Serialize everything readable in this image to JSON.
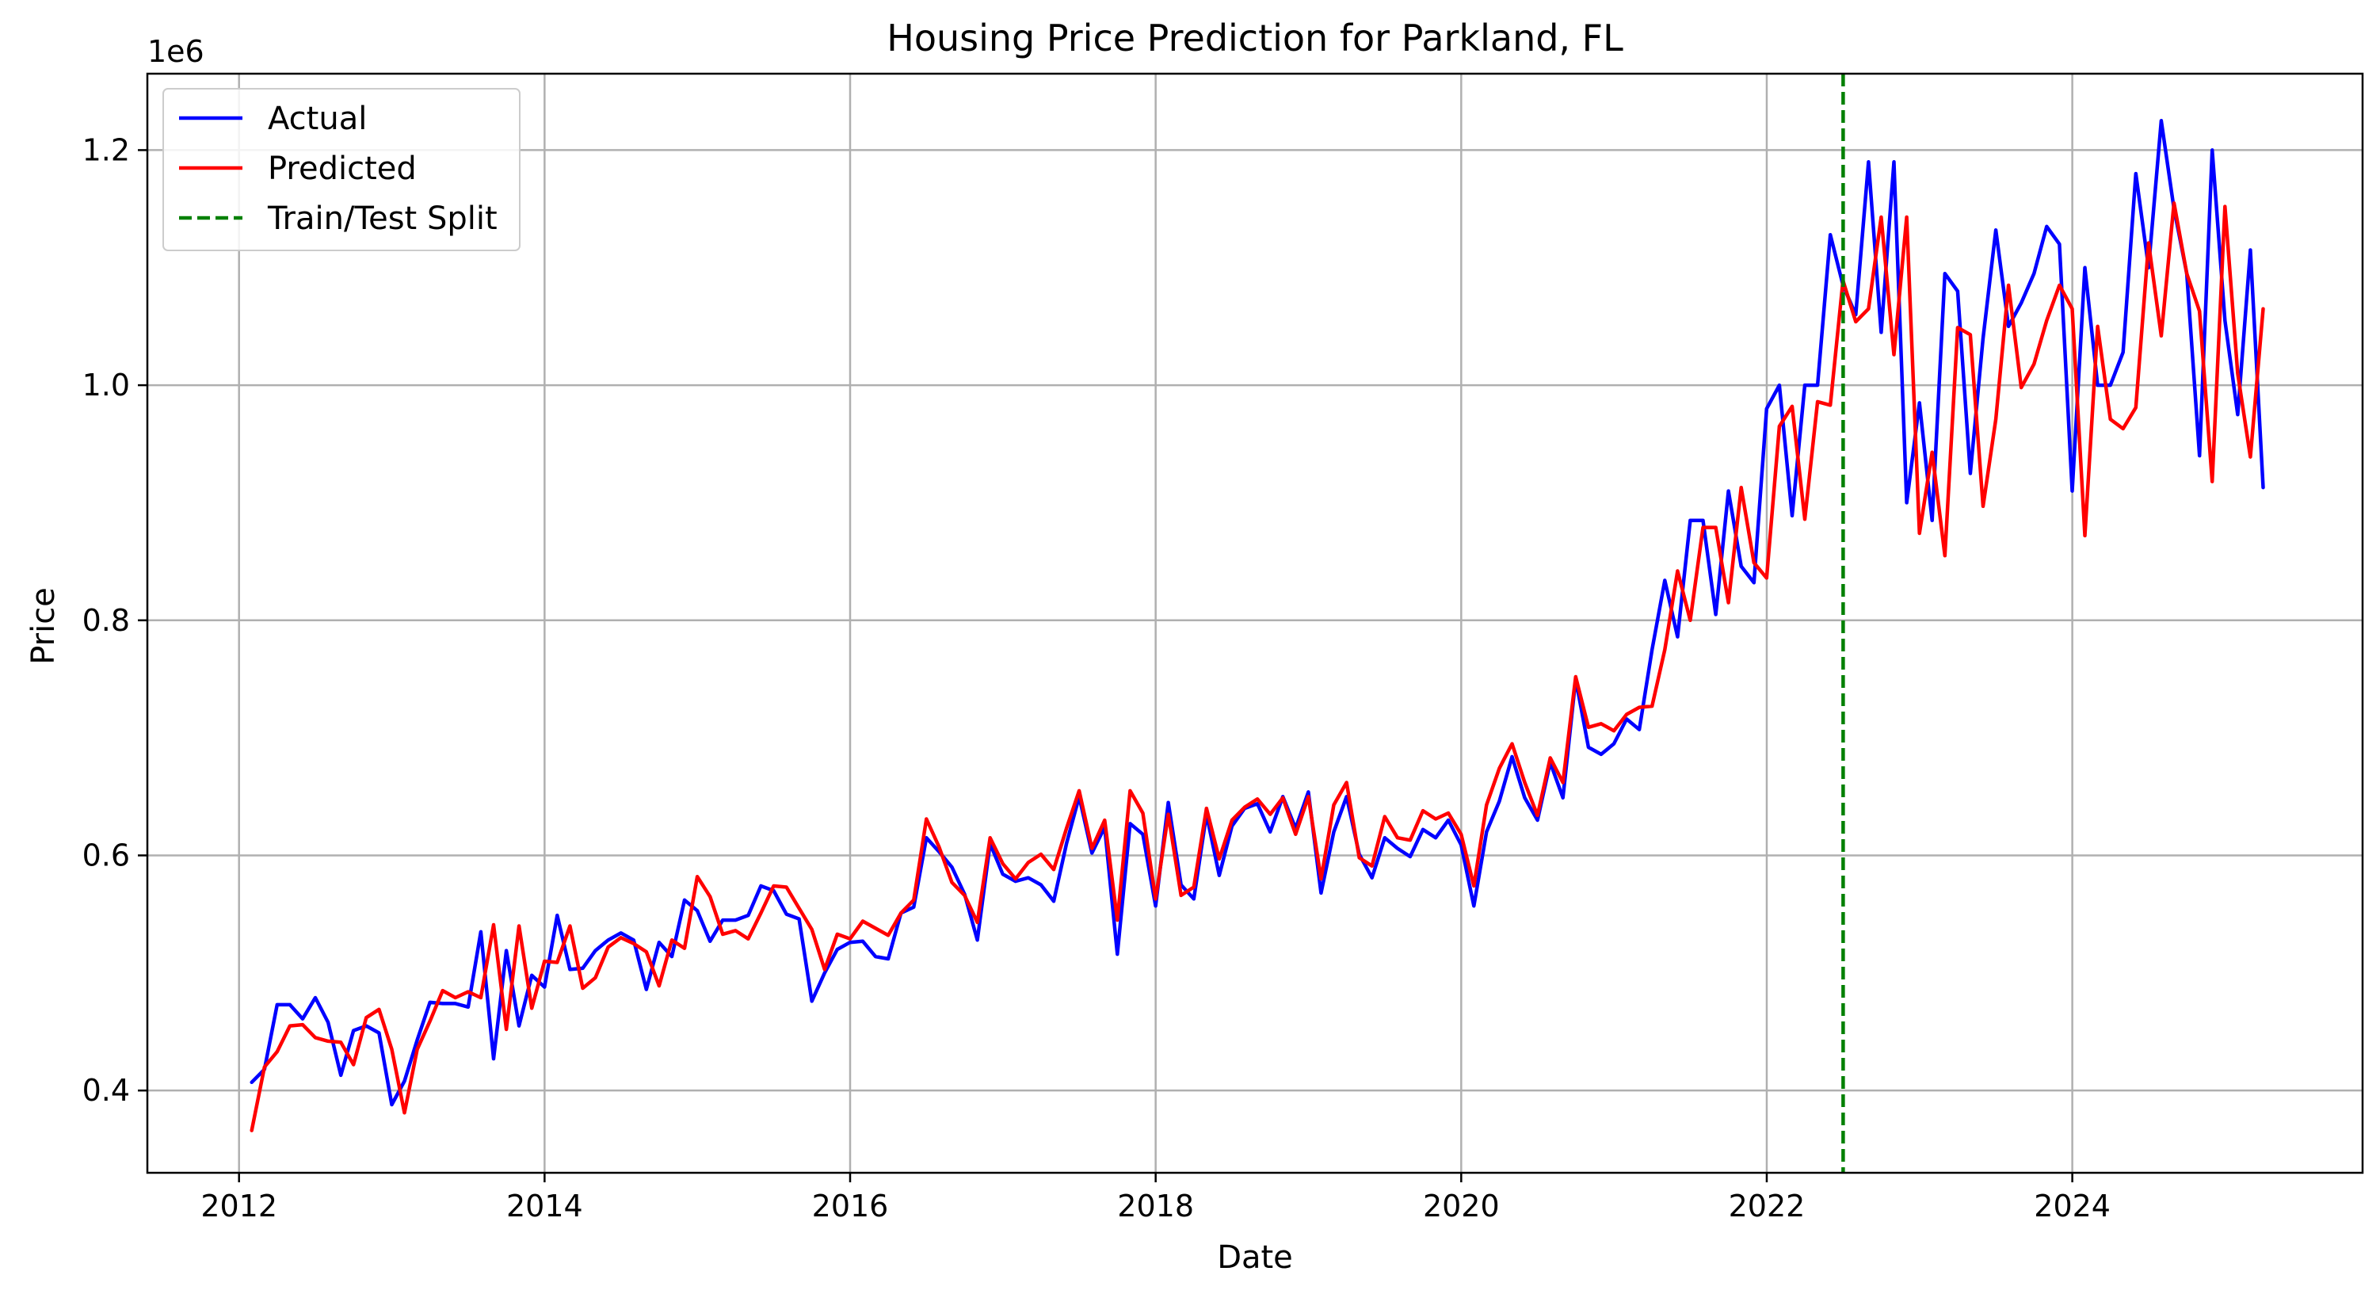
{
  "chart_data": {
    "type": "line",
    "title": "Housing Price Prediction for Parkland, FL",
    "xlabel": "Date",
    "ylabel": "Price",
    "y_scale_text": "1e6",
    "y_scale": 1000000,
    "xlim": [
      2011.4,
      2025.9
    ],
    "ylim": [
      0.33,
      1.265
    ],
    "grid": true,
    "legend_position": "top-left",
    "x_ticks": [
      2012,
      2014,
      2016,
      2018,
      2020,
      2022,
      2024
    ],
    "x_tick_labels": [
      "2012",
      "2014",
      "2016",
      "2018",
      "2020",
      "2022",
      "2024"
    ],
    "y_ticks": [
      0.4,
      0.6,
      0.8,
      1.0,
      1.2
    ],
    "y_tick_labels": [
      "0.4",
      "0.6",
      "0.8",
      "1.0",
      "1.2"
    ],
    "split": {
      "name": "Train/Test Split",
      "x": 2022.5,
      "color": "#008000"
    },
    "series": [
      {
        "name": "Actual",
        "color": "#0000ff",
        "x_start": 2012.083,
        "step": 0.08333,
        "values": [
          0.407,
          0.418,
          0.473,
          0.473,
          0.461,
          0.479,
          0.458,
          0.413,
          0.451,
          0.455,
          0.449,
          0.388,
          0.408,
          0.443,
          0.475,
          0.474,
          0.474,
          0.471,
          0.535,
          0.427,
          0.519,
          0.455,
          0.498,
          0.488,
          0.549,
          0.503,
          0.504,
          0.519,
          0.528,
          0.534,
          0.528,
          0.486,
          0.526,
          0.514,
          0.562,
          0.553,
          0.527,
          0.545,
          0.545,
          0.549,
          0.574,
          0.57,
          0.55,
          0.546,
          0.476,
          0.5,
          0.52,
          0.526,
          0.527,
          0.514,
          0.512,
          0.551,
          0.556,
          0.615,
          0.603,
          0.59,
          0.567,
          0.528,
          0.61,
          0.584,
          0.578,
          0.581,
          0.575,
          0.561,
          0.61,
          0.65,
          0.602,
          0.624,
          0.516,
          0.627,
          0.618,
          0.557,
          0.645,
          0.575,
          0.563,
          0.635,
          0.583,
          0.625,
          0.64,
          0.644,
          0.62,
          0.65,
          0.623,
          0.654,
          0.568,
          0.62,
          0.65,
          0.601,
          0.581,
          0.615,
          0.606,
          0.599,
          0.622,
          0.615,
          0.63,
          0.609,
          0.557,
          0.62,
          0.646,
          0.684,
          0.649,
          0.63,
          0.679,
          0.649,
          0.75,
          0.692,
          0.686,
          0.695,
          0.716,
          0.707,
          0.775,
          0.834,
          0.786,
          0.885,
          0.885,
          0.805,
          0.91,
          0.846,
          0.832,
          0.98,
          1.0,
          0.889,
          1.0,
          1.0,
          1.128,
          1.085,
          1.06,
          1.19,
          1.045,
          1.19,
          0.9,
          0.985,
          0.885,
          1.095,
          1.08,
          0.925,
          1.04,
          1.132,
          1.05,
          1.07,
          1.095,
          1.135,
          1.12,
          0.91,
          1.1,
          1.0,
          1.0,
          1.028,
          1.18,
          1.1,
          1.225,
          1.15,
          1.095,
          0.94,
          1.2,
          1.055,
          0.975,
          1.115,
          0.913
        ]
      },
      {
        "name": "Predicted",
        "color": "#ff0000",
        "x_start": 2012.083,
        "step": 0.08333,
        "values": [
          0.366,
          0.42,
          0.433,
          0.455,
          0.456,
          0.445,
          0.442,
          0.441,
          0.422,
          0.462,
          0.469,
          0.435,
          0.381,
          0.435,
          0.459,
          0.485,
          0.479,
          0.484,
          0.479,
          0.541,
          0.452,
          0.54,
          0.47,
          0.51,
          0.509,
          0.54,
          0.487,
          0.496,
          0.522,
          0.53,
          0.525,
          0.518,
          0.489,
          0.528,
          0.521,
          0.582,
          0.565,
          0.533,
          0.536,
          0.529,
          0.551,
          0.574,
          0.573,
          0.555,
          0.537,
          0.503,
          0.533,
          0.529,
          0.544,
          0.538,
          0.532,
          0.551,
          0.562,
          0.631,
          0.607,
          0.577,
          0.566,
          0.543,
          0.615,
          0.593,
          0.58,
          0.594,
          0.601,
          0.588,
          0.623,
          0.655,
          0.606,
          0.63,
          0.545,
          0.655,
          0.636,
          0.563,
          0.635,
          0.566,
          0.573,
          0.64,
          0.597,
          0.63,
          0.641,
          0.648,
          0.635,
          0.649,
          0.618,
          0.65,
          0.58,
          0.643,
          0.662,
          0.598,
          0.591,
          0.633,
          0.615,
          0.613,
          0.638,
          0.631,
          0.636,
          0.618,
          0.574,
          0.643,
          0.674,
          0.695,
          0.662,
          0.634,
          0.683,
          0.662,
          0.752,
          0.709,
          0.712,
          0.706,
          0.72,
          0.726,
          0.727,
          0.775,
          0.842,
          0.8,
          0.879,
          0.879,
          0.815,
          0.913,
          0.849,
          0.836,
          0.965,
          0.982,
          0.886,
          0.986,
          0.983,
          1.089,
          1.054,
          1.065,
          1.143,
          1.026,
          1.143,
          0.874,
          0.943,
          0.855,
          1.049,
          1.043,
          0.897,
          0.971,
          1.085,
          0.998,
          1.018,
          1.055,
          1.085,
          1.065,
          0.872,
          1.05,
          0.971,
          0.963,
          0.981,
          1.121,
          1.042,
          1.155,
          1.095,
          1.063,
          0.918,
          1.152,
          1.01,
          0.939,
          1.065
        ]
      }
    ]
  }
}
